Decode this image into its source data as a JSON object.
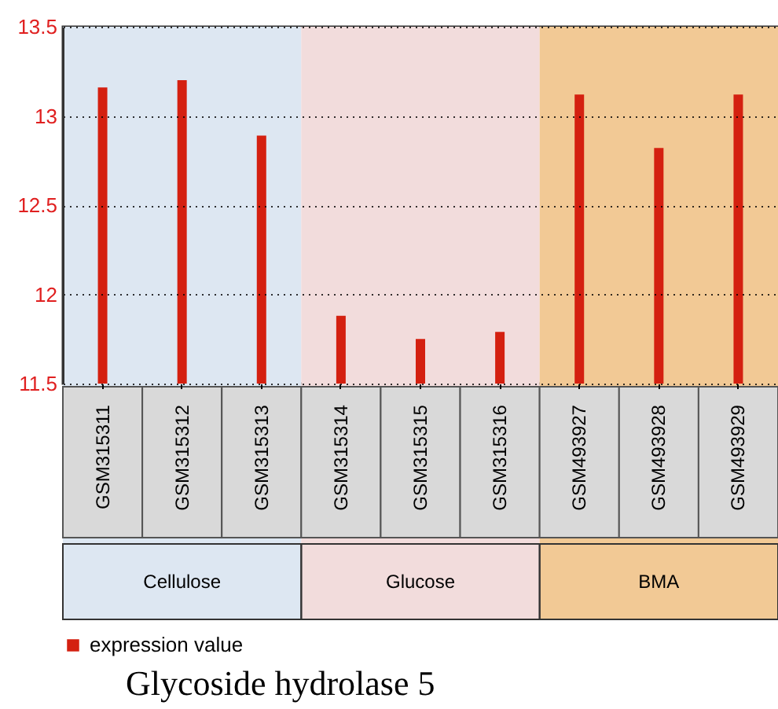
{
  "chart_data": {
    "type": "bar",
    "categories": [
      "GSM315311",
      "GSM315312",
      "GSM315313",
      "GSM315314",
      "GSM315315",
      "GSM315316",
      "GSM493927",
      "GSM493928",
      "GSM493929"
    ],
    "series": [
      {
        "name": "expression value",
        "color": "#d42010",
        "values": [
          13.16,
          13.2,
          12.89,
          11.88,
          11.75,
          11.79,
          13.12,
          12.82,
          13.12
        ]
      }
    ],
    "ylim": [
      11.5,
      13.5
    ],
    "yticks": [
      11.5,
      12,
      12.5,
      13,
      13.5
    ],
    "grid": "y",
    "legend": "bottom left",
    "bands": [
      {
        "axis": "x",
        "from": "GSM315311",
        "to": "GSM315313",
        "label": "Cellulose",
        "color": "#dde7f2"
      },
      {
        "axis": "x",
        "from": "GSM315314",
        "to": "GSM315316",
        "label": "Glucose",
        "color": "#f2dcdc"
      },
      {
        "axis": "x",
        "from": "GSM493927",
        "to": "GSM493929",
        "label": "BMA",
        "color": "#f2c995"
      }
    ],
    "annotations": [
      "Glycoside hydrolase 5"
    ]
  }
}
